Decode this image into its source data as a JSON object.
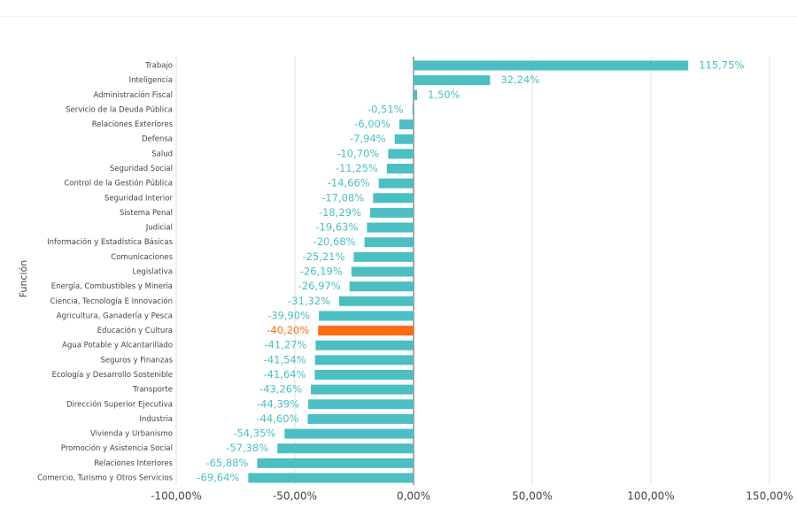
{
  "chart_data": {
    "type": "hbar",
    "y_axis_label": "Función",
    "categories": [
      "Trabajo",
      "Inteligencia",
      "Administración Fiscal",
      "Servicio de la Deuda Pública",
      "Relaciones Exteriores",
      "Defensa",
      "Salud",
      "Seguridad Social",
      "Control de la Gestión Pública",
      "Seguridad Interior",
      "Sistema Penal",
      "Judicial",
      "Información y Estadística Básicas",
      "Comunicaciones",
      "Legislativa",
      "Energía, Combustibles y Minería",
      "Ciencia, Tecnología E Innovación",
      "Agricultura, Ganadería y Pesca",
      "Educación y Cultura",
      "Agua Potable y Alcantarillado",
      "Seguros y Finanzas",
      "Ecología y Desarrollo Sostenible",
      "Transporte",
      "Dirección Superior Ejecutiva",
      "Industria",
      "Vivienda y Urbanismo",
      "Promoción y Asistencia Social",
      "Relaciones Interiores",
      "Comercio, Turismo y Otros Servicios"
    ],
    "values": [
      115.75,
      32.24,
      1.5,
      -0.51,
      -6.0,
      -7.94,
      -10.7,
      -11.25,
      -14.66,
      -17.08,
      -18.29,
      -19.63,
      -20.68,
      -25.21,
      -26.19,
      -26.97,
      -31.32,
      -39.9,
      -40.2,
      -41.27,
      -41.54,
      -41.64,
      -43.26,
      -44.39,
      -44.6,
      -54.35,
      -57.38,
      -65.88,
      -69.64
    ],
    "value_labels": [
      "115,75%",
      "32,24%",
      "1,50%",
      "-0,51%",
      "-6,00%",
      "-7,94%",
      "-10,70%",
      "-11,25%",
      "-14,66%",
      "-17,08%",
      "-18,29%",
      "-19,63%",
      "-20,68%",
      "-25,21%",
      "-26,19%",
      "-26,97%",
      "-31,32%",
      "-39,90%",
      "-40,20%",
      "-41,27%",
      "-41,54%",
      "-41,64%",
      "-43,26%",
      "-44,39%",
      "-44,60%",
      "-54,35%",
      "-57,38%",
      "-65,88%",
      "-69,64%"
    ],
    "colors": [
      "#4bbfc1",
      "#4bbfc1",
      "#4bbfc1",
      "#4bbfc1",
      "#4bbfc1",
      "#4bbfc1",
      "#4bbfc1",
      "#4bbfc1",
      "#4bbfc1",
      "#4bbfc1",
      "#4bbfc1",
      "#4bbfc1",
      "#4bbfc1",
      "#4bbfc1",
      "#4bbfc1",
      "#4bbfc1",
      "#4bbfc1",
      "#4bbfc1",
      "#ff6a13",
      "#4bbfc1",
      "#4bbfc1",
      "#4bbfc1",
      "#4bbfc1",
      "#4bbfc1",
      "#4bbfc1",
      "#4bbfc1",
      "#4bbfc1",
      "#4bbfc1",
      "#4bbfc1"
    ],
    "xlim": [
      -100,
      150
    ],
    "xticks": [
      {
        "value": -100,
        "label": "-100,00%"
      },
      {
        "value": -50,
        "label": "-50,00%"
      },
      {
        "value": 0,
        "label": "0,00%"
      },
      {
        "value": 50,
        "label": "50,00%"
      },
      {
        "value": 100,
        "label": "100,00%"
      },
      {
        "value": 150,
        "label": "150,00%"
      }
    ],
    "grid": true
  }
}
